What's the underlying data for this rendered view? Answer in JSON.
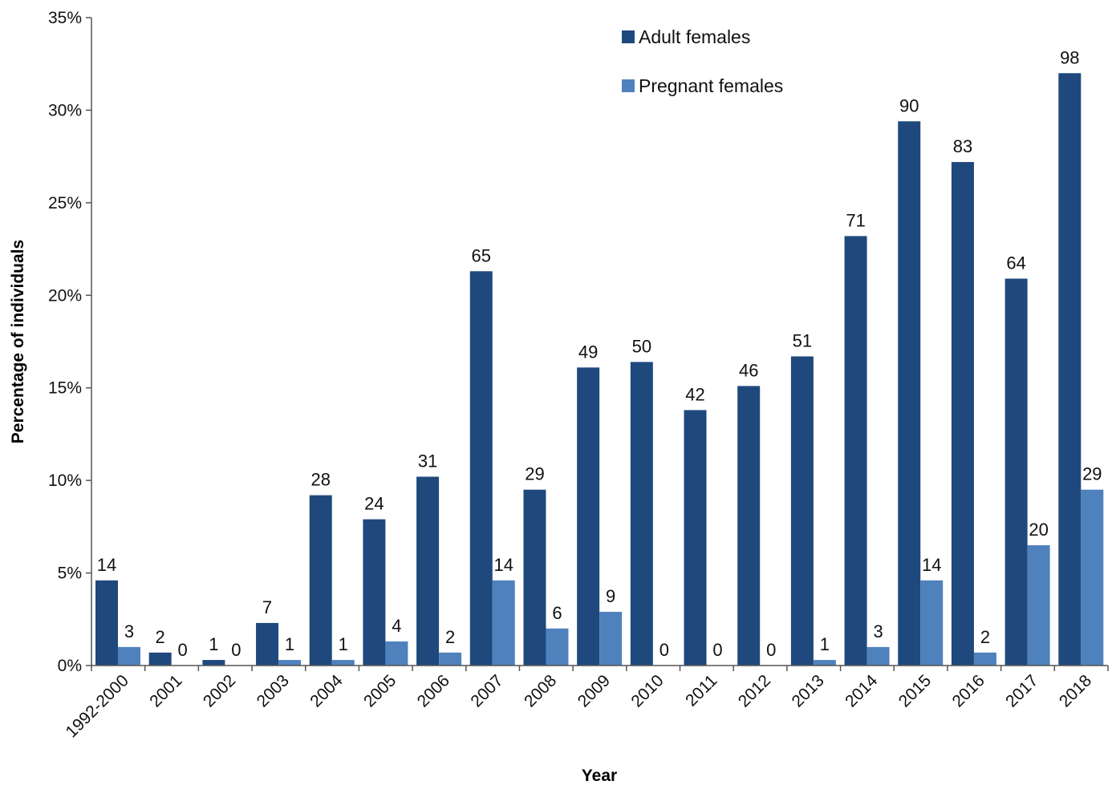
{
  "chart_data": {
    "type": "bar",
    "xlabel": "Year",
    "ylabel": "Percentage of individuals",
    "ylim": [
      0,
      35
    ],
    "yticks": [
      "0%",
      "5%",
      "10%",
      "15%",
      "20%",
      "25%",
      "30%",
      "35%"
    ],
    "ytick_values": [
      0,
      5,
      10,
      15,
      20,
      25,
      30,
      35
    ],
    "categories": [
      "1992-2000",
      "2001",
      "2002",
      "2003",
      "2004",
      "2005",
      "2006",
      "2007",
      "2008",
      "2009",
      "2010",
      "2011",
      "2012",
      "2013",
      "2014",
      "2015",
      "2016",
      "2017",
      "2018"
    ],
    "series": [
      {
        "name": "Adult females",
        "color": "#1F497D",
        "values": [
          4.6,
          0.7,
          0.3,
          2.3,
          9.2,
          7.9,
          10.2,
          21.3,
          9.5,
          16.1,
          16.4,
          13.8,
          15.1,
          16.7,
          23.2,
          29.4,
          27.2,
          20.9,
          32.0
        ],
        "labels": [
          "14",
          "2",
          "1",
          "7",
          "28",
          "24",
          "31",
          "65",
          "29",
          "49",
          "50",
          "42",
          "46",
          "51",
          "71",
          "90",
          "83",
          "64",
          "98"
        ]
      },
      {
        "name": "Pregnant females",
        "color": "#4F81BD",
        "values": [
          1.0,
          0,
          0,
          0.3,
          0.3,
          1.3,
          0.7,
          4.6,
          2.0,
          2.9,
          0,
          0,
          0,
          0.3,
          1.0,
          4.6,
          0.7,
          6.5,
          9.5
        ],
        "labels": [
          "3",
          "0",
          "0",
          "1",
          "1",
          "4",
          "2",
          "14",
          "6",
          "9",
          "0",
          "0",
          "0",
          "1",
          "3",
          "14",
          "2",
          "20",
          "29"
        ]
      }
    ],
    "grid": false,
    "legend_position": "top-right"
  }
}
